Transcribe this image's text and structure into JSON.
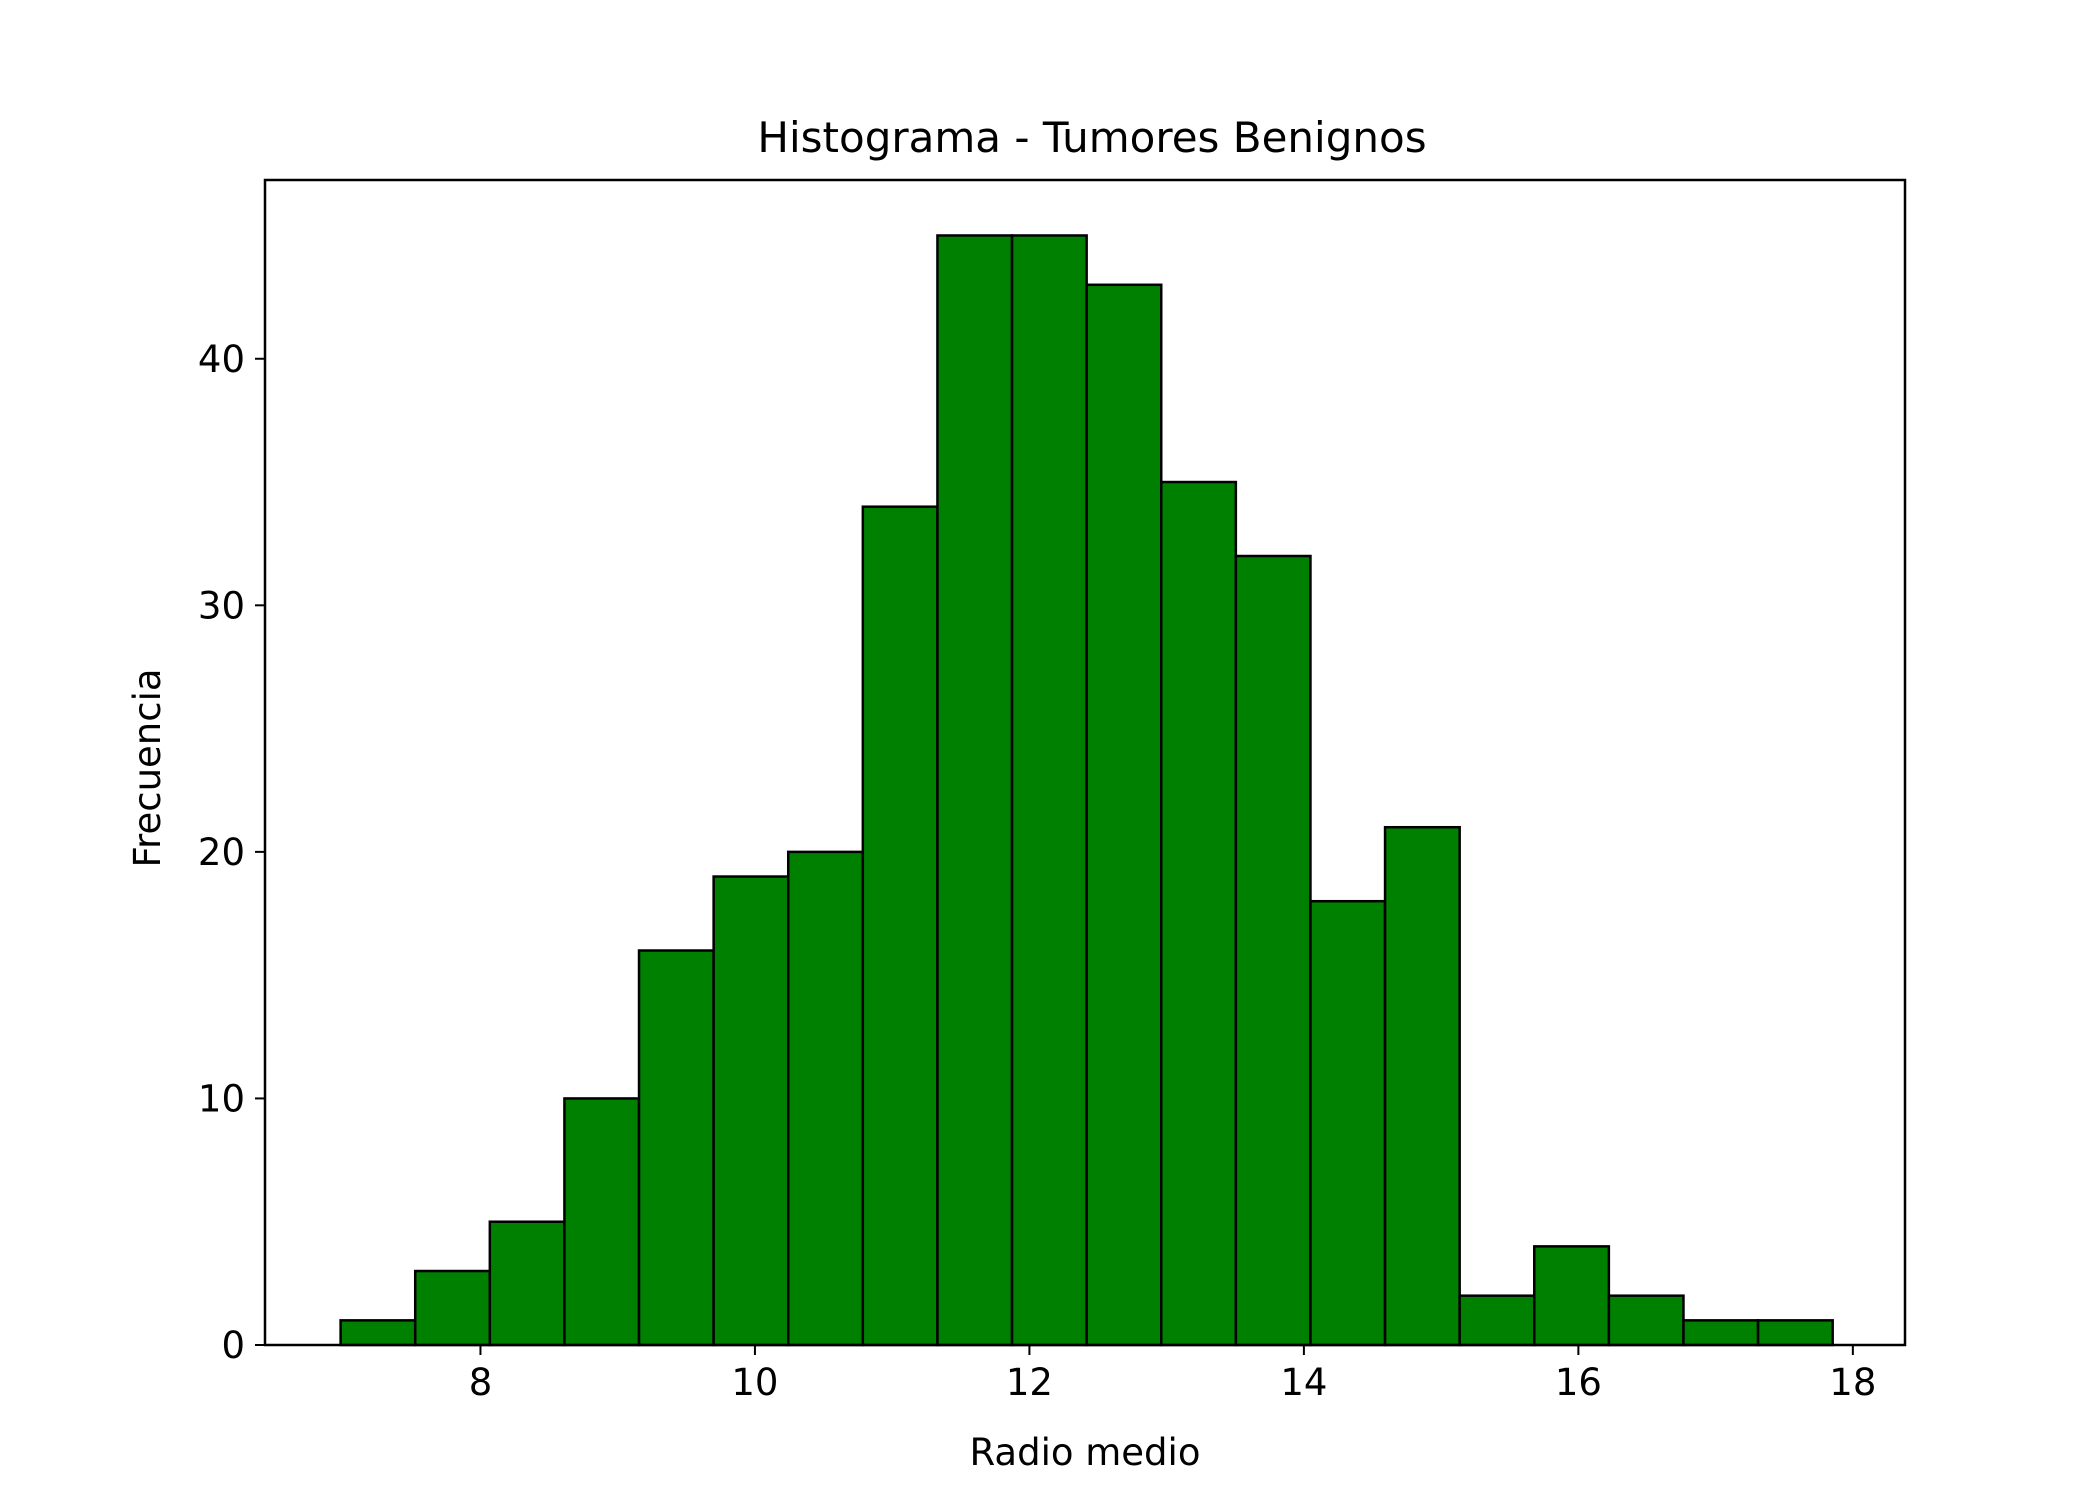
{
  "chart_data": {
    "type": "bar",
    "title": "Histograma - Tumores Benignos",
    "xlabel": "Radio medio",
    "ylabel": "Frecuencia",
    "bin_start": 6.981,
    "bin_width": 0.5436,
    "values": [
      1,
      3,
      5,
      10,
      16,
      19,
      20,
      34,
      45,
      45,
      43,
      35,
      32,
      18,
      21,
      2,
      4,
      2,
      1,
      1
    ],
    "xlim": [
      6.43,
      18.38
    ],
    "ylim": [
      0,
      47.25
    ],
    "xticks": [
      8,
      10,
      12,
      14,
      16,
      18
    ],
    "yticks": [
      0,
      10,
      20,
      30,
      40
    ],
    "grid": false,
    "bar_color": "#008000",
    "edge_color": "#000000"
  }
}
